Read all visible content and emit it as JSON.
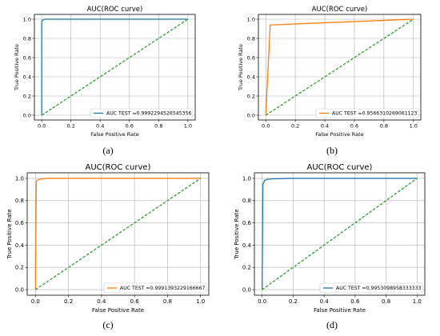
{
  "chart_data": [
    {
      "panel_label": "(a)",
      "type": "line",
      "title": "AUC(ROC curve)",
      "xlabel": "False Positive Rate",
      "ylabel": "True Positive Rate",
      "xlim": [
        -0.05,
        1.05
      ],
      "ylim": [
        -0.05,
        1.05
      ],
      "grid": true,
      "legend_position": "bottom-right",
      "x_ticks": [
        "0.0",
        "0.2",
        "0.4",
        "0.6",
        "0.8",
        "1.0"
      ],
      "y_ticks": [
        "0.0",
        "0.2",
        "0.4",
        "0.6",
        "0.8",
        "1.0"
      ],
      "series": [
        {
          "name": "AUC TEST =0.9992294526545356",
          "color": "#1f77b4",
          "style": "solid",
          "x": [
            0,
            0,
            0.005,
            0.02,
            1.0
          ],
          "y": [
            0,
            0.97,
            0.99,
            1.0,
            1.0
          ]
        },
        {
          "color": "#2ca02c",
          "style": "dashed",
          "x": [
            0,
            1
          ],
          "y": [
            0,
            1
          ]
        }
      ]
    },
    {
      "panel_label": "(b)",
      "type": "line",
      "title": "AUC(ROC curve)",
      "xlabel": "False Positive Rate",
      "ylabel": "True Positive Rate",
      "xlim": [
        -0.05,
        1.05
      ],
      "ylim": [
        -0.05,
        1.05
      ],
      "grid": true,
      "legend_position": "bottom-right",
      "x_ticks": [
        "0.0",
        "0.2",
        "0.4",
        "0.6",
        "0.8",
        "1.0"
      ],
      "y_ticks": [
        "0.0",
        "0.2",
        "0.4",
        "0.6",
        "0.8",
        "1.0"
      ],
      "series": [
        {
          "name": "AUC TEST =0.9566310269061123",
          "color": "#ff7f0e",
          "style": "solid",
          "x": [
            0,
            0.03,
            1.0
          ],
          "y": [
            0,
            0.94,
            1.0
          ]
        },
        {
          "color": "#2ca02c",
          "style": "dashed",
          "x": [
            0,
            1
          ],
          "y": [
            0,
            1
          ]
        }
      ]
    },
    {
      "panel_label": "(c)",
      "type": "line",
      "title": "AUC(ROC curve)",
      "xlabel": "False Positive Rate",
      "ylabel": "True Positive Rate",
      "xlim": [
        -0.05,
        1.05
      ],
      "ylim": [
        -0.05,
        1.05
      ],
      "grid": true,
      "legend_position": "bottom-right",
      "x_ticks": [
        "0.0",
        "0.2",
        "0.4",
        "0.6",
        "0.8",
        "1.0"
      ],
      "y_ticks": [
        "0.0",
        "0.2",
        "0.4",
        "0.6",
        "0.8",
        "1.0"
      ],
      "series": [
        {
          "name": "AUC TEST =0.9991393229166667",
          "color": "#ff7f0e",
          "style": "solid",
          "x": [
            0,
            0.005,
            0.01,
            0.02,
            0.04,
            0.07,
            1.0
          ],
          "y": [
            0,
            0.97,
            0.98,
            0.99,
            0.995,
            1.0,
            1.0
          ]
        },
        {
          "color": "#2ca02c",
          "style": "dashed",
          "x": [
            0,
            1
          ],
          "y": [
            0,
            1
          ]
        }
      ]
    },
    {
      "panel_label": "(d)",
      "type": "line",
      "title": "AUC(ROC curve)",
      "xlabel": "False Positive Rate",
      "ylabel": "True Positive Rate",
      "xlim": [
        -0.05,
        1.05
      ],
      "ylim": [
        -0.05,
        1.05
      ],
      "grid": true,
      "legend_position": "bottom-right",
      "x_ticks": [
        "0.0",
        "0.2",
        "0.4",
        "0.6",
        "0.8",
        "1.0"
      ],
      "y_ticks": [
        "0.0",
        "0.2",
        "0.4",
        "0.6",
        "0.8",
        "1.0"
      ],
      "series": [
        {
          "name": "AUC TEST =0.9953098958333333",
          "color": "#1f77b4",
          "style": "solid",
          "x": [
            0,
            0.005,
            0.01,
            0.015,
            0.03,
            0.06,
            0.2,
            1.0
          ],
          "y": [
            0,
            0.95,
            0.96,
            0.98,
            0.99,
            0.995,
            1.0,
            1.0
          ]
        },
        {
          "color": "#2ca02c",
          "style": "dashed",
          "x": [
            0,
            1
          ],
          "y": [
            0,
            1
          ]
        }
      ]
    }
  ]
}
